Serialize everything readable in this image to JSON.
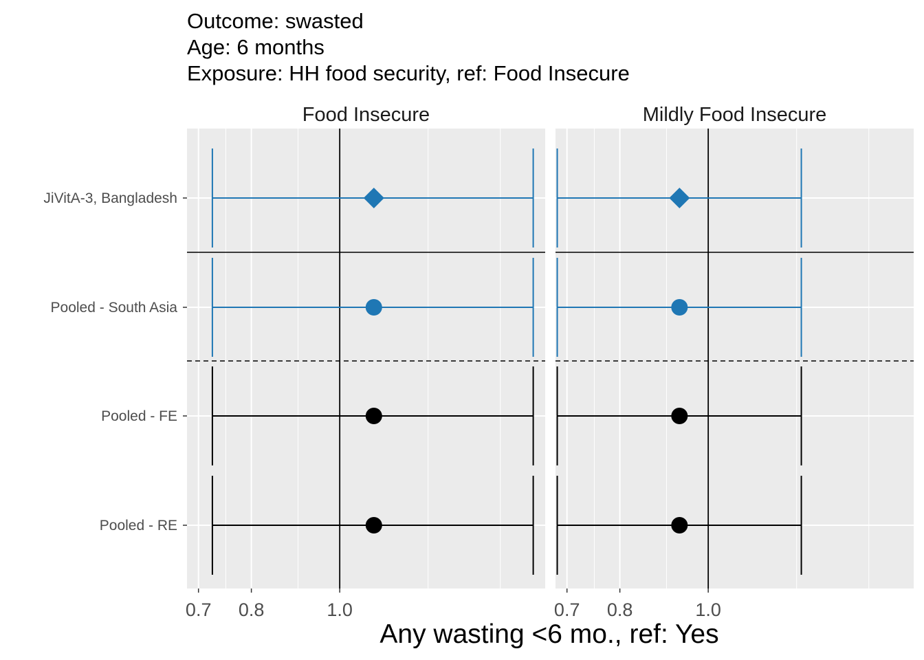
{
  "title_lines": [
    "Outcome: swasted",
    "Age: 6 months",
    "Exposure: HH food security, ref: Food Insecure"
  ],
  "colors": {
    "panel_bg": "#ebebeb",
    "grid": "#ffffff",
    "cohort": "#1f77b4",
    "pooled": "#000000"
  },
  "chart_data": {
    "type": "forest",
    "xlabel": "Any wasting  <6 mo., ref: Yes",
    "x_scale": "log",
    "x_ticks": [
      0.7,
      0.8,
      1.0
    ],
    "x_tick_labels": [
      "0.7",
      "0.8",
      "1.0"
    ],
    "xlim": [
      0.68,
      1.68
    ],
    "reference_line": 1.0,
    "y_categories": [
      "JiVitA-3, Bangladesh",
      "Pooled - South Asia",
      "Pooled - FE",
      "Pooled - RE"
    ],
    "panels": [
      {
        "name": "Food Insecure",
        "rows": [
          {
            "label": "JiVitA-3, Bangladesh",
            "estimate": 1.09,
            "lower": 0.725,
            "upper": 1.63,
            "marker": "diamond",
            "color": "#1f77b4"
          },
          {
            "label": "Pooled - South Asia",
            "estimate": 1.09,
            "lower": 0.725,
            "upper": 1.63,
            "marker": "circle",
            "color": "#1f77b4"
          },
          {
            "label": "Pooled - FE",
            "estimate": 1.09,
            "lower": 0.725,
            "upper": 1.63,
            "marker": "circle",
            "color": "#000000"
          },
          {
            "label": "Pooled - RE",
            "estimate": 1.09,
            "lower": 0.725,
            "upper": 1.63,
            "marker": "circle",
            "color": "#000000"
          }
        ]
      },
      {
        "name": "Mildly Food Insecure",
        "rows": [
          {
            "label": "JiVitA-3, Bangladesh",
            "estimate": 0.93,
            "lower": 0.683,
            "upper": 1.265,
            "marker": "diamond",
            "color": "#1f77b4"
          },
          {
            "label": "Pooled - South Asia",
            "estimate": 0.93,
            "lower": 0.683,
            "upper": 1.265,
            "marker": "circle",
            "color": "#1f77b4"
          },
          {
            "label": "Pooled - FE",
            "estimate": 0.93,
            "lower": 0.683,
            "upper": 1.265,
            "marker": "circle",
            "color": "#000000"
          },
          {
            "label": "Pooled - RE",
            "estimate": 0.93,
            "lower": 0.683,
            "upper": 1.265,
            "marker": "circle",
            "color": "#000000"
          }
        ]
      }
    ],
    "separators": [
      {
        "after_row": 0,
        "style": "solid"
      },
      {
        "after_row": 1,
        "style": "dashed"
      }
    ]
  }
}
